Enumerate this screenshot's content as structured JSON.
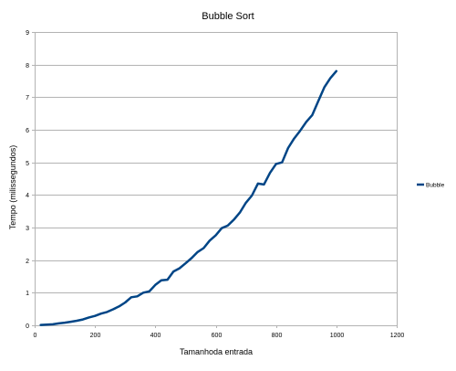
{
  "chart_data": {
    "type": "line",
    "title": "Bubble Sort",
    "xlabel": "Tamanhoda entrada",
    "ylabel": "Tempo (milissegundos)",
    "xlim": [
      0,
      1200
    ],
    "ylim": [
      0,
      9
    ],
    "xticks": [
      0,
      200,
      400,
      600,
      800,
      1000,
      1200
    ],
    "yticks": [
      0,
      1,
      2,
      3,
      4,
      5,
      6,
      7,
      8,
      9
    ],
    "grid": true,
    "legend_position": "right",
    "series": [
      {
        "name": "Bubble",
        "color": "#004586",
        "x": [
          20,
          40,
          60,
          80,
          100,
          120,
          140,
          160,
          180,
          200,
          220,
          240,
          260,
          280,
          300,
          320,
          340,
          360,
          380,
          400,
          420,
          440,
          460,
          480,
          500,
          520,
          540,
          560,
          580,
          600,
          620,
          640,
          660,
          680,
          700,
          720,
          740,
          760,
          780,
          800,
          820,
          840,
          860,
          880,
          900,
          920,
          940,
          960,
          980,
          1000
        ],
        "values": [
          0.01,
          0.02,
          0.03,
          0.06,
          0.08,
          0.11,
          0.14,
          0.18,
          0.24,
          0.29,
          0.36,
          0.41,
          0.49,
          0.58,
          0.7,
          0.86,
          0.89,
          1.0,
          1.04,
          1.24,
          1.38,
          1.4,
          1.65,
          1.75,
          1.9,
          2.06,
          2.25,
          2.37,
          2.6,
          2.76,
          2.98,
          3.06,
          3.24,
          3.46,
          3.76,
          3.98,
          4.35,
          4.32,
          4.68,
          4.95,
          5.0,
          5.44,
          5.73,
          5.97,
          6.24,
          6.45,
          6.88,
          7.3,
          7.58,
          7.8
        ]
      }
    ]
  }
}
